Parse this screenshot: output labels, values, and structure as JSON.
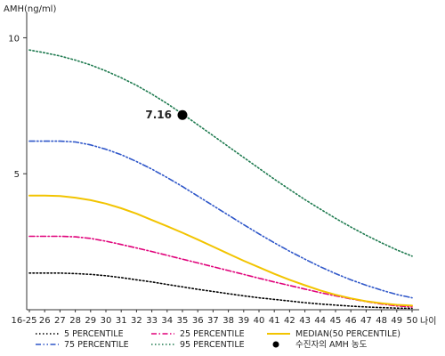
{
  "chart_data": {
    "type": "line",
    "ylabel": "AMH(ng/ml)",
    "xlabel": "나이",
    "x_categories": [
      "16-25",
      "26",
      "27",
      "28",
      "29",
      "30",
      "31",
      "32",
      "33",
      "34",
      "35",
      "36",
      "37",
      "38",
      "39",
      "40",
      "41",
      "42",
      "43",
      "44",
      "45",
      "46",
      "47",
      "48",
      "49",
      "50"
    ],
    "ylim": [
      0,
      10.8
    ],
    "y_ticks": [
      5,
      10
    ],
    "grid": false,
    "series": [
      {
        "name": "5 PERCENTILE",
        "color": "#000000",
        "dash": "dotted",
        "values": [
          1.35,
          1.35,
          1.35,
          1.33,
          1.3,
          1.25,
          1.18,
          1.1,
          1.02,
          0.93,
          0.84,
          0.75,
          0.67,
          0.59,
          0.51,
          0.44,
          0.38,
          0.32,
          0.26,
          0.21,
          0.17,
          0.13,
          0.1,
          0.08,
          0.06,
          0.05
        ]
      },
      {
        "name": "25 PERCENTILE",
        "color": "#e0007a",
        "dash": "dashdot",
        "values": [
          2.7,
          2.7,
          2.7,
          2.68,
          2.62,
          2.52,
          2.4,
          2.27,
          2.14,
          2.0,
          1.86,
          1.72,
          1.58,
          1.44,
          1.3,
          1.16,
          1.02,
          0.89,
          0.76,
          0.63,
          0.51,
          0.4,
          0.3,
          0.21,
          0.14,
          0.1
        ]
      },
      {
        "name": "MEDIAN(50 PERCENTILE)",
        "color": "#f2c400",
        "dash": "solid",
        "values": [
          4.2,
          4.2,
          4.18,
          4.12,
          4.03,
          3.9,
          3.73,
          3.53,
          3.3,
          3.07,
          2.83,
          2.58,
          2.32,
          2.06,
          1.8,
          1.56,
          1.32,
          1.1,
          0.9,
          0.71,
          0.55,
          0.42,
          0.31,
          0.24,
          0.18,
          0.15
        ]
      },
      {
        "name": "75 PERCENTILE",
        "color": "#2f57c9",
        "dash": "dashdotdot",
        "values": [
          6.2,
          6.2,
          6.2,
          6.17,
          6.06,
          5.9,
          5.7,
          5.45,
          5.17,
          4.86,
          4.53,
          4.18,
          3.83,
          3.48,
          3.13,
          2.79,
          2.46,
          2.15,
          1.86,
          1.58,
          1.33,
          1.1,
          0.9,
          0.72,
          0.56,
          0.44
        ]
      },
      {
        "name": "95 PERCENTILE",
        "color": "#1e7a4f",
        "dash": "dotted",
        "values": [
          9.55,
          9.45,
          9.33,
          9.18,
          9.0,
          8.78,
          8.53,
          8.25,
          7.93,
          7.58,
          7.2,
          6.8,
          6.4,
          6.0,
          5.6,
          5.2,
          4.8,
          4.42,
          4.05,
          3.7,
          3.36,
          3.04,
          2.74,
          2.46,
          2.2,
          1.97
        ]
      }
    ],
    "patient_point": {
      "name": "수진자의 AMH 농도",
      "x": "35",
      "y": 7.16,
      "label": "7.16",
      "color": "#000000"
    },
    "legend": {
      "placement": "bottom",
      "order": [
        "5 PERCENTILE",
        "25 PERCENTILE",
        "MEDIAN(50 PERCENTILE)",
        "75 PERCENTILE",
        "95 PERCENTILE",
        "수진자의 AMH 농도"
      ]
    }
  }
}
